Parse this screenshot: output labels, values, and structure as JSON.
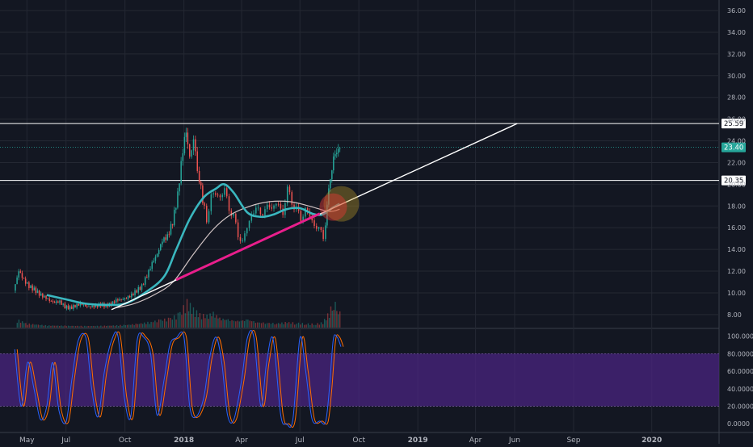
{
  "chart_data": {
    "type": "candlestick",
    "colors": {
      "background": "#131722",
      "grid": "#242833",
      "up": "#26a69a",
      "down": "#ef5350",
      "ma_fast": "#3ab7bf",
      "ma_slow": "#d1c4c4",
      "trendline": "#ffffff",
      "trend_highlight": "#e91e8c",
      "stoch_k": "#2962ff",
      "stoch_d": "#ff6d00",
      "stoch_band": "#4a2480",
      "last_price_tag": "#26a69a",
      "level_tag_bg": "#ffffff"
    },
    "price_axis": {
      "min": 6.8,
      "max": 36.6,
      "ticks": [
        "8.00",
        "10.00",
        "12.00",
        "14.00",
        "16.00",
        "18.00",
        "20.00",
        "22.00",
        "24.00",
        "26.00",
        "28.00",
        "30.00",
        "32.00",
        "34.00",
        "36.00"
      ]
    },
    "time_axis": {
      "labels": [
        "May",
        "Jul",
        "Oct",
        "2018",
        "Apr",
        "Jul",
        "Oct",
        "2019",
        "Apr",
        "Jun",
        "Sep",
        "2020"
      ],
      "bold": [
        "2018",
        "2019",
        "2020"
      ]
    },
    "horizontal_levels": [
      {
        "value": 25.59,
        "label": "25.59"
      },
      {
        "value": 20.35,
        "label": "20.35"
      }
    ],
    "last_price": {
      "value": 23.4,
      "label": "23.40"
    },
    "trendline": {
      "start": [
        "2017-09-10",
        8.45
      ],
      "end": [
        "2019-06-05",
        25.59
      ]
    },
    "trend_highlight": {
      "start": [
        "2017-12-20",
        11.2
      ],
      "end": [
        "2018-08-01",
        17.3
      ]
    },
    "close_series": [
      [
        "2017-04-12",
        10.2
      ],
      [
        "2017-04-20",
        12.0
      ],
      [
        "2017-04-28",
        11.2
      ],
      [
        "2017-05-06",
        10.6
      ],
      [
        "2017-05-14",
        10.3
      ],
      [
        "2017-05-22",
        9.9
      ],
      [
        "2017-05-30",
        9.6
      ],
      [
        "2017-06-07",
        9.3
      ],
      [
        "2017-06-15",
        9.1
      ],
      [
        "2017-06-23",
        9.2
      ],
      [
        "2017-07-01",
        8.7
      ],
      [
        "2017-07-09",
        8.6
      ],
      [
        "2017-07-17",
        8.8
      ],
      [
        "2017-07-25",
        9.0
      ],
      [
        "2017-08-02",
        8.8
      ],
      [
        "2017-08-10",
        8.7
      ],
      [
        "2017-08-18",
        8.8
      ],
      [
        "2017-08-26",
        8.9
      ],
      [
        "2017-09-03",
        8.8
      ],
      [
        "2017-09-11",
        9.0
      ],
      [
        "2017-09-19",
        9.3
      ],
      [
        "2017-09-27",
        9.4
      ],
      [
        "2017-10-05",
        9.5
      ],
      [
        "2017-10-13",
        9.8
      ],
      [
        "2017-10-21",
        10.2
      ],
      [
        "2017-10-29",
        10.6
      ],
      [
        "2017-11-06",
        11.6
      ],
      [
        "2017-11-14",
        12.7
      ],
      [
        "2017-11-22",
        13.6
      ],
      [
        "2017-11-30",
        14.8
      ],
      [
        "2017-12-08",
        15.2
      ],
      [
        "2017-12-16",
        16.5
      ],
      [
        "2017-12-24",
        19.0
      ],
      [
        "2018-01-01",
        23.2
      ],
      [
        "2018-01-06",
        25.0
      ],
      [
        "2018-01-12",
        22.5
      ],
      [
        "2018-01-18",
        24.0
      ],
      [
        "2018-01-24",
        21.5
      ],
      [
        "2018-02-01",
        18.6
      ],
      [
        "2018-02-08",
        16.8
      ],
      [
        "2018-02-15",
        18.8
      ],
      [
        "2018-02-22",
        19.2
      ],
      [
        "2018-03-01",
        18.8
      ],
      [
        "2018-03-08",
        19.5
      ],
      [
        "2018-03-15",
        17.8
      ],
      [
        "2018-03-22",
        17.0
      ],
      [
        "2018-03-29",
        15.4
      ],
      [
        "2018-04-05",
        14.6
      ],
      [
        "2018-04-12",
        16.1
      ],
      [
        "2018-04-19",
        17.2
      ],
      [
        "2018-04-26",
        17.7
      ],
      [
        "2018-05-03",
        17.5
      ],
      [
        "2018-05-10",
        17.4
      ],
      [
        "2018-05-17",
        18.2
      ],
      [
        "2018-05-24",
        17.8
      ],
      [
        "2018-05-31",
        18.3
      ],
      [
        "2018-06-07",
        17.2
      ],
      [
        "2018-06-14",
        19.6
      ],
      [
        "2018-06-21",
        18.4
      ],
      [
        "2018-06-28",
        17.6
      ],
      [
        "2018-07-05",
        16.9
      ],
      [
        "2018-07-12",
        17.6
      ],
      [
        "2018-07-19",
        17.1
      ],
      [
        "2018-07-26",
        16.2
      ],
      [
        "2018-08-02",
        15.9
      ],
      [
        "2018-08-09",
        15.2
      ],
      [
        "2018-08-14",
        17.8
      ],
      [
        "2018-08-19",
        20.8
      ],
      [
        "2018-08-24",
        22.3
      ],
      [
        "2018-08-29",
        23.0
      ],
      [
        "2018-09-03",
        23.4
      ]
    ],
    "volume": [
      [
        "2017-04-15",
        0.3
      ],
      [
        "2017-05-01",
        0.15
      ],
      [
        "2017-06-01",
        0.08
      ],
      [
        "2017-07-01",
        0.07
      ],
      [
        "2017-08-01",
        0.06
      ],
      [
        "2017-09-01",
        0.07
      ],
      [
        "2017-10-01",
        0.1
      ],
      [
        "2017-10-20",
        0.14
      ],
      [
        "2017-11-10",
        0.22
      ],
      [
        "2017-11-25",
        0.3
      ],
      [
        "2017-12-10",
        0.35
      ],
      [
        "2017-12-25",
        0.55
      ],
      [
        "2018-01-05",
        1.0
      ],
      [
        "2018-01-15",
        0.7
      ],
      [
        "2018-01-25",
        0.5
      ],
      [
        "2018-02-05",
        0.45
      ],
      [
        "2018-02-15",
        0.55
      ],
      [
        "2018-02-25",
        0.35
      ],
      [
        "2018-03-10",
        0.3
      ],
      [
        "2018-03-25",
        0.25
      ],
      [
        "2018-04-10",
        0.3
      ],
      [
        "2018-04-25",
        0.2
      ],
      [
        "2018-05-10",
        0.18
      ],
      [
        "2018-05-25",
        0.16
      ],
      [
        "2018-06-10",
        0.2
      ],
      [
        "2018-06-25",
        0.18
      ],
      [
        "2018-07-10",
        0.15
      ],
      [
        "2018-07-25",
        0.14
      ],
      [
        "2018-08-05",
        0.2
      ],
      [
        "2018-08-15",
        0.6
      ],
      [
        "2018-08-22",
        1.0
      ],
      [
        "2018-08-29",
        0.7
      ],
      [
        "2018-09-03",
        0.45
      ]
    ],
    "ma_fast": [
      [
        "2017-06-01",
        9.8
      ],
      [
        "2017-07-01",
        9.4
      ],
      [
        "2017-08-01",
        9.0
      ],
      [
        "2017-09-01",
        8.9
      ],
      [
        "2017-10-01",
        9.0
      ],
      [
        "2017-11-01",
        10.0
      ],
      [
        "2017-12-01",
        11.5
      ],
      [
        "2017-12-20",
        14.0
      ],
      [
        "2018-01-10",
        16.8
      ],
      [
        "2018-02-01",
        18.8
      ],
      [
        "2018-02-20",
        19.6
      ],
      [
        "2018-03-05",
        20.0
      ],
      [
        "2018-03-20",
        19.2
      ],
      [
        "2018-04-10",
        17.4
      ],
      [
        "2018-05-01",
        17.0
      ],
      [
        "2018-05-20",
        17.2
      ],
      [
        "2018-06-10",
        17.7
      ],
      [
        "2018-07-01",
        17.8
      ],
      [
        "2018-07-20",
        17.3
      ],
      [
        "2018-08-05",
        17.2
      ],
      [
        "2018-08-20",
        17.8
      ],
      [
        "2018-09-01",
        18.2
      ]
    ],
    "ma_slow": [
      [
        "2017-09-15",
        8.6
      ],
      [
        "2017-10-15",
        9.0
      ],
      [
        "2017-11-15",
        9.8
      ],
      [
        "2017-12-15",
        11.0
      ],
      [
        "2018-01-15",
        13.5
      ],
      [
        "2018-02-15",
        15.8
      ],
      [
        "2018-03-15",
        17.2
      ],
      [
        "2018-04-15",
        18.0
      ],
      [
        "2018-05-15",
        18.4
      ],
      [
        "2018-06-15",
        18.4
      ],
      [
        "2018-07-15",
        18.0
      ],
      [
        "2018-08-15",
        17.5
      ],
      [
        "2018-09-01",
        17.7
      ]
    ],
    "stoch_axis": {
      "min": -10,
      "max": 108,
      "ticks": [
        "0.0000",
        "20.0000",
        "40.0000",
        "60.0000",
        "80.0000",
        "100.0000"
      ],
      "band": [
        20,
        80
      ]
    },
    "stoch_k": [
      [
        "2017-04-12",
        85
      ],
      [
        "2017-04-22",
        20
      ],
      [
        "2017-05-02",
        70
      ],
      [
        "2017-05-12",
        40
      ],
      [
        "2017-05-22",
        5
      ],
      [
        "2017-06-01",
        20
      ],
      [
        "2017-06-10",
        70
      ],
      [
        "2017-06-20",
        15
      ],
      [
        "2017-07-01",
        2
      ],
      [
        "2017-07-10",
        50
      ],
      [
        "2017-07-20",
        95
      ],
      [
        "2017-08-01",
        98
      ],
      [
        "2017-08-10",
        40
      ],
      [
        "2017-08-20",
        8
      ],
      [
        "2017-08-30",
        60
      ],
      [
        "2017-09-10",
        95
      ],
      [
        "2017-09-20",
        100
      ],
      [
        "2017-09-30",
        30
      ],
      [
        "2017-10-10",
        8
      ],
      [
        "2017-10-20",
        95
      ],
      [
        "2017-10-30",
        99
      ],
      [
        "2017-11-10",
        80
      ],
      [
        "2017-11-20",
        10
      ],
      [
        "2017-12-01",
        50
      ],
      [
        "2017-12-10",
        90
      ],
      [
        "2017-12-20",
        98
      ],
      [
        "2018-01-01",
        99
      ],
      [
        "2018-01-10",
        20
      ],
      [
        "2018-01-20",
        8
      ],
      [
        "2018-02-01",
        30
      ],
      [
        "2018-02-10",
        75
      ],
      [
        "2018-02-20",
        99
      ],
      [
        "2018-03-01",
        70
      ],
      [
        "2018-03-10",
        10
      ],
      [
        "2018-03-20",
        5
      ],
      [
        "2018-04-01",
        50
      ],
      [
        "2018-04-10",
        98
      ],
      [
        "2018-04-20",
        99
      ],
      [
        "2018-05-01",
        20
      ],
      [
        "2018-05-10",
        70
      ],
      [
        "2018-05-20",
        97
      ],
      [
        "2018-06-01",
        10
      ],
      [
        "2018-06-10",
        0
      ],
      [
        "2018-06-20",
        5
      ],
      [
        "2018-07-01",
        98
      ],
      [
        "2018-07-10",
        60
      ],
      [
        "2018-07-20",
        5
      ],
      [
        "2018-08-01",
        3
      ],
      [
        "2018-08-10",
        2
      ],
      [
        "2018-08-16",
        40
      ],
      [
        "2018-08-22",
        96
      ],
      [
        "2018-08-28",
        99
      ],
      [
        "2018-09-03",
        88
      ]
    ]
  }
}
